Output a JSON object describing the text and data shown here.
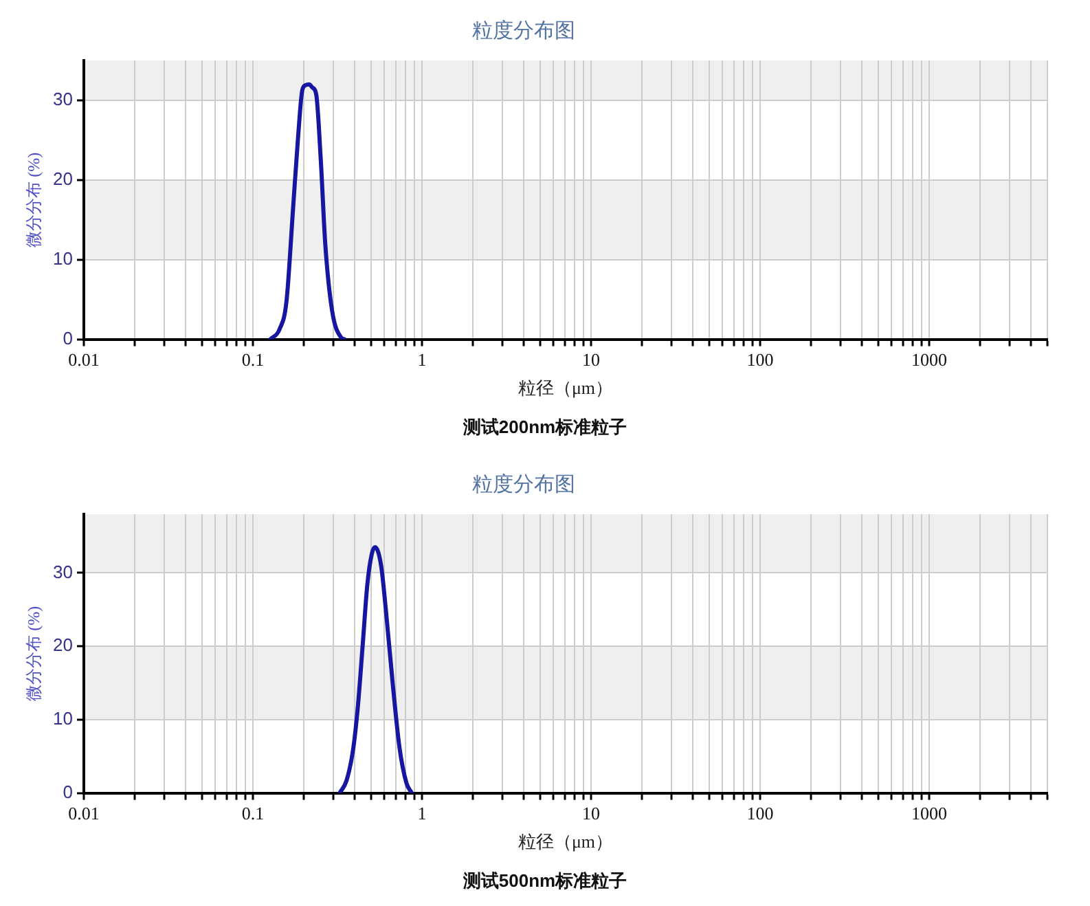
{
  "chart_data": [
    {
      "type": "line",
      "title": "粒度分布图",
      "xlabel": "粒径（μm）",
      "ylabel": "微分分布 (%)",
      "annotations": [
        "测试200nm标准粒子"
      ],
      "x": [
        0.127,
        0.144,
        0.158,
        0.173,
        0.185,
        0.196,
        0.205,
        0.215,
        0.225,
        0.237,
        0.252,
        0.268,
        0.294,
        0.333,
        0.348
      ],
      "values": [
        0,
        1.3,
        4.8,
        16.6,
        25.4,
        31.3,
        31.9,
        32.0,
        31.6,
        30.7,
        22.5,
        11.9,
        3.6,
        0.2,
        0
      ],
      "color": "#1616a0",
      "marker": "none",
      "log": "x",
      "grid": true,
      "xlim": [
        0.01,
        5000
      ],
      "xticks": [
        0.01,
        {
          "value": 0.02,
          "label": null
        },
        {
          "value": 0.03,
          "label": null
        },
        {
          "value": 0.04,
          "label": null
        },
        {
          "value": 0.05,
          "label": null
        },
        {
          "value": 0.06,
          "label": null
        },
        {
          "value": 0.07,
          "label": null
        },
        {
          "value": 0.08,
          "label": null
        },
        {
          "value": 0.09,
          "label": null
        },
        0.1,
        {
          "value": 0.2,
          "label": null
        },
        {
          "value": 0.3,
          "label": null
        },
        {
          "value": 0.4,
          "label": null
        },
        {
          "value": 0.5,
          "label": null
        },
        {
          "value": 0.6,
          "label": null
        },
        {
          "value": 0.7,
          "label": null
        },
        {
          "value": 0.8,
          "label": null
        },
        {
          "value": 0.9,
          "label": null
        },
        1,
        {
          "value": 2,
          "label": null
        },
        {
          "value": 3,
          "label": null
        },
        {
          "value": 4,
          "label": null
        },
        {
          "value": 5,
          "label": null
        },
        {
          "value": 6,
          "label": null
        },
        {
          "value": 7,
          "label": null
        },
        {
          "value": 8,
          "label": null
        },
        {
          "value": 9,
          "label": null
        },
        10,
        {
          "value": 20,
          "label": null
        },
        {
          "value": 30,
          "label": null
        },
        {
          "value": 40,
          "label": null
        },
        {
          "value": 50,
          "label": null
        },
        {
          "value": 60,
          "label": null
        },
        {
          "value": 70,
          "label": null
        },
        {
          "value": 80,
          "label": null
        },
        {
          "value": 90,
          "label": null
        },
        100,
        {
          "value": 200,
          "label": null
        },
        {
          "value": 300,
          "label": null
        },
        {
          "value": 400,
          "label": null
        },
        {
          "value": 500,
          "label": null
        },
        {
          "value": 600,
          "label": null
        },
        {
          "value": 700,
          "label": null
        },
        {
          "value": 800,
          "label": null
        },
        {
          "value": 900,
          "label": null
        },
        1000,
        {
          "value": 2000,
          "label": null
        },
        {
          "value": 3000,
          "label": null
        },
        {
          "value": 4000,
          "label": null
        },
        {
          "value": 5000,
          "label": null
        }
      ],
      "ylim": [
        0,
        35
      ],
      "yticks": [
        0,
        10,
        20,
        30
      ]
    },
    {
      "type": "line",
      "title": "粒度分布图",
      "xlabel": "粒径（μm）",
      "ylabel": "微分分布 (%)",
      "annotations": [
        "测试500nm标准粒子"
      ],
      "x": [
        0.326,
        0.358,
        0.393,
        0.418,
        0.446,
        0.475,
        0.505,
        0.528,
        0.573,
        0.61,
        0.67,
        0.736,
        0.808,
        0.87
      ],
      "values": [
        0,
        1.7,
        6.2,
        11.9,
        20.2,
        28.4,
        32.6,
        33.5,
        31.0,
        25.2,
        15.1,
        6.2,
        1.4,
        0
      ],
      "color": "#1616a0",
      "marker": "none",
      "log": "x",
      "grid": true,
      "xlim": [
        0.01,
        5000
      ],
      "xticks": [
        0.01,
        {
          "value": 0.02,
          "label": null
        },
        {
          "value": 0.03,
          "label": null
        },
        {
          "value": 0.04,
          "label": null
        },
        {
          "value": 0.05,
          "label": null
        },
        {
          "value": 0.06,
          "label": null
        },
        {
          "value": 0.07,
          "label": null
        },
        {
          "value": 0.08,
          "label": null
        },
        {
          "value": 0.09,
          "label": null
        },
        0.1,
        {
          "value": 0.2,
          "label": null
        },
        {
          "value": 0.3,
          "label": null
        },
        {
          "value": 0.4,
          "label": null
        },
        {
          "value": 0.5,
          "label": null
        },
        {
          "value": 0.6,
          "label": null
        },
        {
          "value": 0.7,
          "label": null
        },
        {
          "value": 0.8,
          "label": null
        },
        {
          "value": 0.9,
          "label": null
        },
        1,
        {
          "value": 2,
          "label": null
        },
        {
          "value": 3,
          "label": null
        },
        {
          "value": 4,
          "label": null
        },
        {
          "value": 5,
          "label": null
        },
        {
          "value": 6,
          "label": null
        },
        {
          "value": 7,
          "label": null
        },
        {
          "value": 8,
          "label": null
        },
        {
          "value": 9,
          "label": null
        },
        10,
        {
          "value": 20,
          "label": null
        },
        {
          "value": 30,
          "label": null
        },
        {
          "value": 40,
          "label": null
        },
        {
          "value": 50,
          "label": null
        },
        {
          "value": 60,
          "label": null
        },
        {
          "value": 70,
          "label": null
        },
        {
          "value": 80,
          "label": null
        },
        {
          "value": 90,
          "label": null
        },
        100,
        {
          "value": 200,
          "label": null
        },
        {
          "value": 300,
          "label": null
        },
        {
          "value": 400,
          "label": null
        },
        {
          "value": 500,
          "label": null
        },
        {
          "value": 600,
          "label": null
        },
        {
          "value": 700,
          "label": null
        },
        {
          "value": 800,
          "label": null
        },
        {
          "value": 900,
          "label": null
        },
        1000,
        {
          "value": 2000,
          "label": null
        },
        {
          "value": 3000,
          "label": null
        },
        {
          "value": 4000,
          "label": null
        },
        {
          "value": 5000,
          "label": null
        }
      ],
      "ylim": [
        0,
        38
      ],
      "yticks": [
        0,
        10,
        20,
        30
      ]
    }
  ]
}
